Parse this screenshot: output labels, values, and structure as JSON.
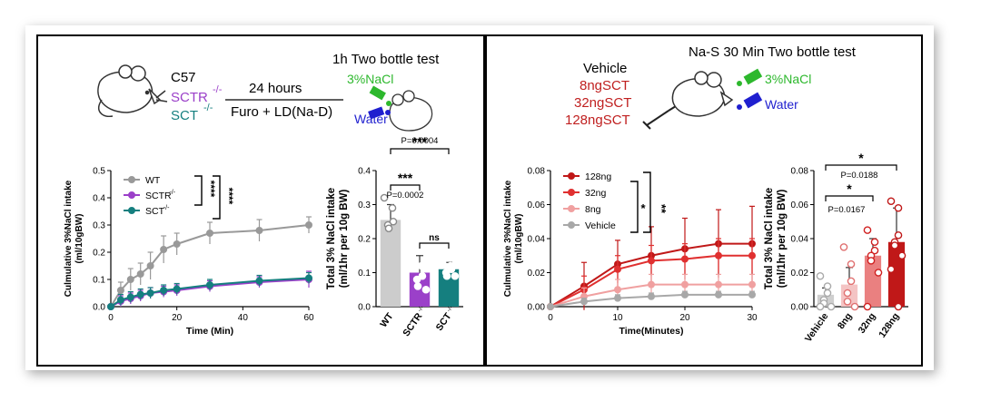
{
  "panel_a": {
    "header": {
      "strain": "C57",
      "sctr": "SCTR",
      "sct": "SCT",
      "ko_sup": "-/-",
      "duration": "24 hours",
      "treatment": "Furo + LD(Na-D)",
      "test_title": "1h Two bottle test",
      "nacl_label": "3%NaCl",
      "water_label": "Water"
    },
    "colors": {
      "wt": "#999999",
      "sctr": "#9b40c9",
      "sct": "#157f7f",
      "nacl": "#2db82d",
      "water": "#1f1fcf"
    }
  },
  "panel_b": {
    "header": {
      "test_title": "Na-S  30 Min Two bottle test",
      "doses": [
        "Vehicle",
        "8ngSCT",
        "32ngSCT",
        "128ngSCT"
      ],
      "nacl_label": "3%NaCl",
      "water_label": "Water"
    },
    "colors": {
      "c128": "#c01818",
      "c32": "#e03030",
      "c8": "#f0a0a0",
      "veh": "#a8a8a8",
      "dose_text": "#c02020"
    }
  },
  "chart_data": [
    {
      "id": "a_line",
      "type": "line",
      "title": "",
      "xlabel": "Time (Min)",
      "ylabel": "Culmulative 3%NaCl intake",
      "ylabel2": "(ml/10gBW)",
      "xlim": [
        0,
        60
      ],
      "ylim": [
        0,
        0.5
      ],
      "xticks": [
        0,
        20,
        40,
        60
      ],
      "yticks": [
        0.0,
        0.1,
        0.2,
        0.3,
        0.4,
        0.5
      ],
      "ytick_labels": [
        "0.0",
        "0.1",
        "0.2",
        "0.3",
        "0.4",
        "0.5"
      ],
      "legend": [
        "WT",
        "SCTR",
        "SCT"
      ],
      "legend_sup": "-/-",
      "sig_stars": [
        "****",
        "****"
      ],
      "series": [
        {
          "name": "WT",
          "color": "#999999",
          "x": [
            0,
            3,
            6,
            9,
            12,
            16,
            20,
            30,
            45,
            60
          ],
          "y": [
            0,
            0.06,
            0.1,
            0.12,
            0.15,
            0.21,
            0.23,
            0.27,
            0.28,
            0.3
          ],
          "err": [
            0,
            0.03,
            0.04,
            0.04,
            0.05,
            0.05,
            0.04,
            0.04,
            0.04,
            0.03
          ]
        },
        {
          "name": "SCTR-/-",
          "color": "#9b40c9",
          "x": [
            0,
            3,
            6,
            9,
            12,
            16,
            20,
            30,
            45,
            60
          ],
          "y": [
            0,
            0.02,
            0.03,
            0.04,
            0.05,
            0.055,
            0.06,
            0.075,
            0.09,
            0.1
          ],
          "err": [
            0,
            0.02,
            0.02,
            0.02,
            0.02,
            0.02,
            0.02,
            0.02,
            0.02,
            0.03
          ]
        },
        {
          "name": "SCT-/-",
          "color": "#157f7f",
          "x": [
            0,
            3,
            6,
            9,
            12,
            16,
            20,
            30,
            45,
            60
          ],
          "y": [
            0,
            0.025,
            0.035,
            0.045,
            0.05,
            0.06,
            0.065,
            0.08,
            0.095,
            0.105
          ],
          "err": [
            0,
            0.02,
            0.02,
            0.02,
            0.02,
            0.02,
            0.02,
            0.02,
            0.02,
            0.02
          ]
        }
      ]
    },
    {
      "id": "a_bar",
      "type": "bar",
      "ylabel": "Total 3% NaCl intake",
      "ylabel2": "(ml/1hr per 10g BW)",
      "ylim": [
        0,
        0.4
      ],
      "yticks": [
        0.0,
        0.1,
        0.2,
        0.3,
        0.4
      ],
      "ytick_labels": [
        "0.0",
        "0.1",
        "0.2",
        "0.3",
        "0.4"
      ],
      "categories": [
        "WT",
        "SCTR",
        "SCT"
      ],
      "cat_sup": "-/-",
      "values": [
        0.255,
        0.1,
        0.11
      ],
      "errors": [
        0.045,
        0.05,
        0.02
      ],
      "colors": [
        "#cccccc",
        "#9b40c9",
        "#157f7f"
      ],
      "points": [
        [
          0.32,
          0.29,
          0.25,
          0.24,
          0.23
        ],
        [
          0.17,
          0.12,
          0.09,
          0.08,
          0.06,
          0.05
        ],
        [
          0.13,
          0.12,
          0.11,
          0.1,
          0.09,
          0.09
        ]
      ],
      "annotations": [
        {
          "from": 0,
          "to": 1,
          "label": "***",
          "p": "P=0.0002"
        },
        {
          "from": 1,
          "to": 2,
          "label": "ns",
          "p": ""
        },
        {
          "from": 0,
          "to": 2,
          "label": "***",
          "p": "P=0.0004"
        }
      ]
    },
    {
      "id": "b_line",
      "type": "line",
      "xlabel": "Time(Minutes)",
      "ylabel": "Culmulative 3%NaCl intake",
      "ylabel2": "(ml/10gBW)",
      "xlim": [
        0,
        30
      ],
      "ylim": [
        0,
        0.08
      ],
      "xticks": [
        0,
        10,
        20,
        30
      ],
      "yticks": [
        0.0,
        0.02,
        0.04,
        0.06,
        0.08
      ],
      "ytick_labels": [
        "0.00",
        "0.02",
        "0.04",
        "0.06",
        "0.08"
      ],
      "legend": [
        "128ng",
        "32ng",
        "8ng",
        "Vehicle"
      ],
      "sig_stars": [
        "*",
        "**"
      ],
      "series": [
        {
          "name": "128ng",
          "color": "#c01818",
          "x": [
            0,
            5,
            10,
            15,
            20,
            25,
            30
          ],
          "y": [
            0,
            0.012,
            0.025,
            0.03,
            0.034,
            0.037,
            0.037
          ],
          "err": [
            0,
            0.014,
            0.014,
            0.017,
            0.018,
            0.02,
            0.022
          ]
        },
        {
          "name": "32ng",
          "color": "#e03030",
          "x": [
            0,
            5,
            10,
            15,
            20,
            25,
            30
          ],
          "y": [
            0,
            0.01,
            0.022,
            0.027,
            0.028,
            0.03,
            0.03
          ],
          "err": [
            0,
            0.008,
            0.008,
            0.009,
            0.009,
            0.01,
            0.01
          ]
        },
        {
          "name": "8ng",
          "color": "#f0a0a0",
          "x": [
            0,
            5,
            10,
            15,
            20,
            25,
            30
          ],
          "y": [
            0,
            0.006,
            0.01,
            0.013,
            0.013,
            0.013,
            0.013
          ],
          "err": [
            0,
            0.005,
            0.006,
            0.006,
            0.006,
            0.006,
            0.006
          ]
        },
        {
          "name": "Vehicle",
          "color": "#a8a8a8",
          "x": [
            0,
            5,
            10,
            15,
            20,
            25,
            30
          ],
          "y": [
            0,
            0.003,
            0.005,
            0.006,
            0.007,
            0.007,
            0.007
          ],
          "err": [
            0,
            0.002,
            0.002,
            0.002,
            0.002,
            0.002,
            0.002
          ]
        }
      ]
    },
    {
      "id": "b_bar",
      "type": "bar",
      "ylabel": "Total 3% NaCl intake",
      "ylabel2": "(ml/1hr per 10g BW)",
      "ylim": [
        0,
        0.08
      ],
      "yticks": [
        0.0,
        0.02,
        0.04,
        0.06,
        0.08
      ],
      "ytick_labels": [
        "0.00",
        "0.02",
        "0.04",
        "0.06",
        "0.08"
      ],
      "categories": [
        "Vehicle",
        "8ng",
        "32ng",
        "128ng"
      ],
      "values": [
        0.007,
        0.013,
        0.03,
        0.038
      ],
      "errors": [
        0.004,
        0.01,
        0.01,
        0.02
      ],
      "colors": [
        "#cfcfcf",
        "#f4c4c4",
        "#ea8080",
        "#c01818"
      ],
      "points": [
        [
          0.018,
          0.012,
          0.008,
          0.004,
          0.002,
          0.0,
          0.0
        ],
        [
          0.035,
          0.025,
          0.015,
          0.008,
          0.003,
          0.0
        ],
        [
          0.045,
          0.038,
          0.033,
          0.03,
          0.027,
          0.02,
          0.0
        ],
        [
          0.062,
          0.058,
          0.042,
          0.038,
          0.036,
          0.03,
          0.022,
          0.0
        ]
      ],
      "annotations": [
        {
          "from": 0,
          "to": 2,
          "label": "*",
          "p": "P=0.0167"
        },
        {
          "from": 0,
          "to": 3,
          "label": "*",
          "p": "P=0.0188"
        }
      ]
    }
  ]
}
